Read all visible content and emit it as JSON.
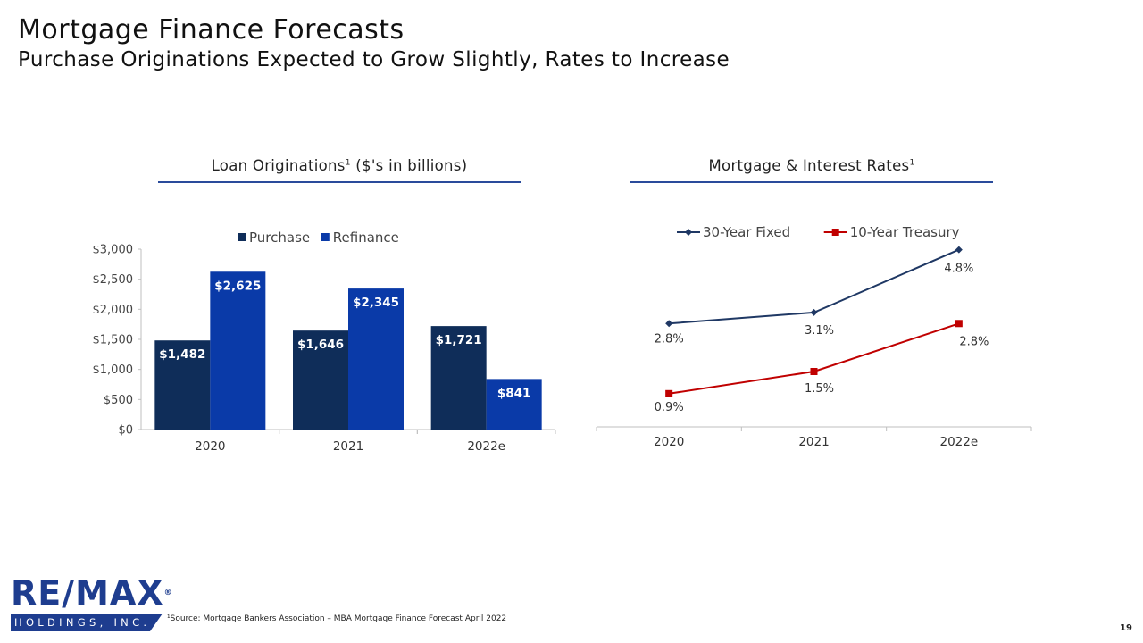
{
  "header": {
    "title": "Mortgage Finance Forecasts",
    "subtitle": "Purchase Originations Expected to Grow Slightly, Rates to Increase"
  },
  "left_panel": {
    "title": "Loan Originations",
    "title_sup": "1",
    "title_suffix": " ($'s in billions)"
  },
  "right_panel": {
    "title": "Mortgage & Interest Rates",
    "title_sup": "1"
  },
  "brand": {
    "accent": "#2a4b9b",
    "navy": "#0f2d59",
    "blue": "#0a3aa8",
    "red": "#c00000"
  },
  "logo": {
    "main": "RE/MAX",
    "reg": "®",
    "sub": "HOLDINGS, INC."
  },
  "footnote": "¹Source: Mortgage Bankers Association – MBA Mortgage Finance Forecast April 2022",
  "page_number": "19",
  "chart_data": [
    {
      "type": "bar",
      "categories": [
        "2020",
        "2021",
        "2022e"
      ],
      "series": [
        {
          "name": "Purchase",
          "values": [
            1482,
            1646,
            1721
          ],
          "labels": [
            "$1,482",
            "$1,646",
            "$1,721"
          ],
          "color": "#0f2d59"
        },
        {
          "name": "Refinance",
          "values": [
            2625,
            2345,
            841
          ],
          "labels": [
            "$2,625",
            "$2,345",
            "$841"
          ],
          "color": "#0a3aa8"
        }
      ],
      "ylim": [
        0,
        3000
      ],
      "yticks": [
        0,
        500,
        1000,
        1500,
        2000,
        2500,
        3000
      ],
      "ytick_labels": [
        "$0",
        "$500",
        "$1,000",
        "$1,500",
        "$2,000",
        "$2,500",
        "$3,000"
      ],
      "legend": "top-center",
      "grid": false
    },
    {
      "type": "line",
      "categories": [
        "2020",
        "2021",
        "2022e"
      ],
      "series": [
        {
          "name": "30-Year Fixed",
          "values": [
            2.8,
            3.1,
            4.8
          ],
          "labels": [
            "2.8%",
            "3.1%",
            "4.8%"
          ],
          "color": "#1f3864",
          "marker": "diamond"
        },
        {
          "name": "10-Year Treasury",
          "values": [
            0.9,
            1.5,
            2.8
          ],
          "labels": [
            "0.9%",
            "1.5%",
            "2.8%"
          ],
          "color": "#c00000",
          "marker": "square"
        }
      ],
      "legend": "top-center",
      "grid": false
    }
  ]
}
